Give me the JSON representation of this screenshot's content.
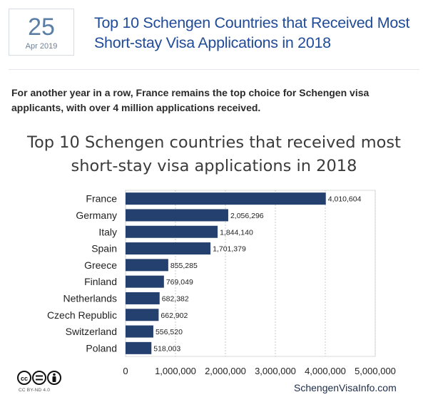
{
  "post": {
    "day": "25",
    "month_year": "Apr 2019",
    "headline": "Top 10 Schengen Countries that Received Most Short-stay Visa Applications in 2018",
    "lead": "For another year in a row, France remains the top choice for Schengen visa applicants, with over 4 million applications received."
  },
  "chart_data": {
    "type": "bar",
    "orientation": "horizontal",
    "title": "Top 10 Schengen countries that received most short-stay visa applications in 2018",
    "categories": [
      "France",
      "Germany",
      "Italy",
      "Spain",
      "Greece",
      "Finland",
      "Netherlands",
      "Czech Republic",
      "Switzerland",
      "Poland"
    ],
    "values": [
      4010604,
      2056296,
      1844140,
      1701379,
      855285,
      769049,
      682382,
      662902,
      556520,
      518003
    ],
    "data_labels": [
      "4,010,604",
      "2,056,296",
      "1,844,140",
      "1,701,379",
      "855,285",
      "769,049",
      "682,382",
      "662,902",
      "556,520",
      "518,003"
    ],
    "x_ticks": [
      0,
      1000000,
      2000000,
      3000000,
      4000000,
      5000000
    ],
    "x_tick_labels": [
      "0",
      "1,000,000",
      "2,000,000",
      "3,000,000",
      "4,000,000",
      "5,000,000"
    ],
    "xlim": [
      0,
      5000000
    ],
    "grid": "vertical dashed",
    "bar_color": "#23406e"
  },
  "footer": {
    "license_label": "CC BY-ND 4.0",
    "source": "SchengenVisaInfo.com"
  }
}
